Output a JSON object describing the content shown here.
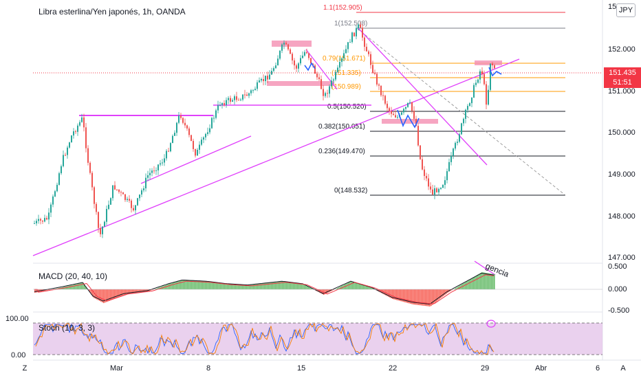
{
  "header": {
    "title": "Libra esterlina/Yen japonés, 1h, OANDA",
    "currency": "JPY"
  },
  "price_scale": {
    "labels": [
      "152.000",
      "151.000",
      "150.000",
      "149.000",
      "148.000",
      "147.000"
    ],
    "top_partial": "15"
  },
  "current_price": {
    "value": "151.435",
    "countdown": "51:51"
  },
  "fib_labels": [
    "1.1(152.905)",
    "1(152.508)",
    "0.79(151.671)",
    "(151.335)",
    "(150.989)",
    "0.5(150.520)",
    "0.382(150.051)",
    "0.236(149.470)",
    "0(148.532)"
  ],
  "time_axis": {
    "labels": [
      "Mar",
      "8",
      "15",
      "22",
      "29",
      "Abr",
      "6"
    ]
  },
  "macd": {
    "label": "MACD (20, 40, 10)",
    "scale": [
      "0.500",
      "0.000",
      "-0.500"
    ],
    "annotation": "gencia"
  },
  "stoch": {
    "label": "Stoch (10, 3, 3)",
    "scale": [
      "100.00",
      "0.00"
    ]
  },
  "footer": {
    "left": "Z",
    "right": "A"
  },
  "colors": {
    "up": "#26a69a",
    "down": "#ef5350",
    "fib_red": "#f23645",
    "fib_orange": "#ff9800",
    "magenta": "#e040fb",
    "pink_zone": "#f48fb1",
    "stoch_bg": "#e1bee7",
    "blue_pattern": "#2962ff"
  }
}
